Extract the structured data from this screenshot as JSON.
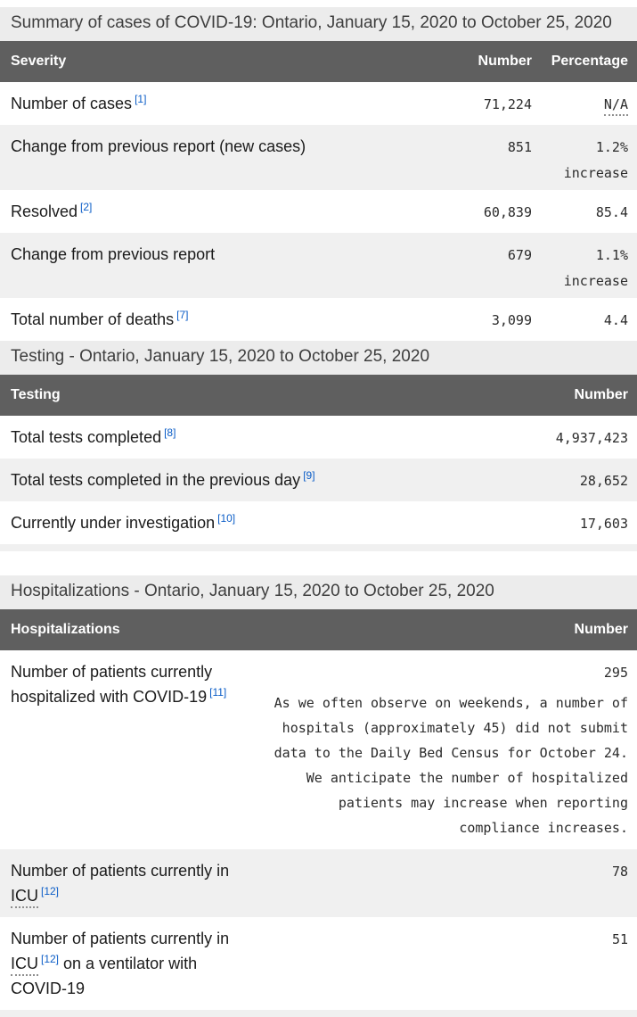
{
  "colors": {
    "table_header_bg": "#5f5f5f",
    "caption_bg": "#ececec",
    "zebra_row_bg": "#f0f0f0",
    "link_blue": "#0b5dc7",
    "body_text": "#1b1b1b"
  },
  "summary": {
    "caption": "Summary of cases of COVID-19: Ontario, January 15, 2020 to October 25, 2020",
    "columns": [
      "Severity",
      "Number",
      "Percentage"
    ],
    "rows": [
      {
        "label": "Number of cases",
        "ref": "[1]",
        "number": "71,224",
        "percentage": "N/A"
      },
      {
        "label": "Change from previous report (new cases)",
        "number": "851",
        "percentage": "1.2%",
        "percentage_note": "increase"
      },
      {
        "label": "Resolved",
        "ref": "[2]",
        "number": "60,839",
        "percentage": "85.4"
      },
      {
        "label": "Change from previous report",
        "number": "679",
        "percentage": "1.1%",
        "percentage_note": "increase"
      },
      {
        "label": "Total number of deaths",
        "ref": "[7]",
        "number": "3,099",
        "percentage": "4.4"
      }
    ]
  },
  "testing": {
    "caption": "Testing - Ontario, January 15, 2020 to October 25, 2020",
    "columns": [
      "Testing",
      "Number"
    ],
    "rows": [
      {
        "label": "Total tests completed",
        "ref": "[8]",
        "number": "4,937,423"
      },
      {
        "label": "Total tests completed in the previous day",
        "ref": "[9]",
        "number": "28,652"
      },
      {
        "label": "Currently under investigation",
        "ref": "[10]",
        "number": "17,603"
      }
    ]
  },
  "hospitalizations": {
    "caption": "Hospitalizations - Ontario, January 15, 2020 to October 25, 2020",
    "columns": [
      "Hospitalizations",
      "Number"
    ],
    "rows": [
      {
        "label": "Number of patients currently hospitalized with COVID-19",
        "ref": "[11]",
        "number": "295",
        "note": "As we often observe on weekends, a number of hospitals (approximately 45) did not submit data to the Daily Bed Census for October 24. We anticipate the number of hospitalized patients may increase when reporting compliance increases."
      },
      {
        "label_pre": "Number of patients currently in ",
        "abbr": "ICU",
        "ref": "[12]",
        "number": "78"
      },
      {
        "label_pre": "Number of patients currently in ",
        "abbr": "ICU",
        "ref": "[12]",
        "label_post": " on a ventilator with COVID-19",
        "number": "51"
      }
    ]
  }
}
